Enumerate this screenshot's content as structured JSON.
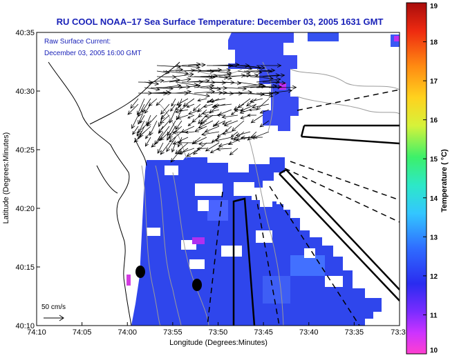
{
  "chart_data": {
    "type": "heatmap",
    "title": "RU COOL  NOAA–17  Sea Surface Temperature:  December 03, 2005 1631 GMT",
    "annotation_lines": [
      "Raw Surface Current:",
      "December 03, 2005 16:00 GMT"
    ],
    "scale_label": "50 cm/s",
    "xlabel": "Longitude (Degrees:Minutes)",
    "ylabel": "Latitude (Degrees:Minutes)",
    "x_ticks": [
      "74:10",
      "74:05",
      "74:00",
      "73:55",
      "73:50",
      "73:45",
      "73:40",
      "73:35",
      "73:3"
    ],
    "y_ticks": [
      "40:35",
      "40:30",
      "40:25",
      "40:20",
      "40:15",
      "40:10"
    ],
    "colorbar": {
      "label": "Temperature ( °C)",
      "ticks": [
        "19",
        "18",
        "17",
        "16",
        "15",
        "14",
        "13",
        "12",
        "11",
        "10"
      ],
      "range": [
        10,
        19
      ]
    }
  }
}
